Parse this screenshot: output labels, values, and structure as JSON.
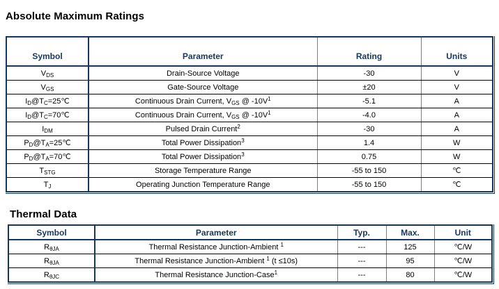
{
  "colors": {
    "accent_navy": "#17365D",
    "grid_gray": "#7f7f7f",
    "row_divider": "#000000",
    "body_text": "#000000",
    "background": "#ffffff"
  },
  "amr": {
    "title": "Absolute Maximum Ratings",
    "headers": [
      "Symbol",
      "Parameter",
      "Rating",
      "Units"
    ],
    "rows": [
      {
        "symbol": [
          {
            "t": "V"
          },
          {
            "t": "DS",
            "s": "sub"
          }
        ],
        "parameter": [
          {
            "t": "Drain-Source Voltage"
          }
        ],
        "rating": "-30",
        "units": "V"
      },
      {
        "symbol": [
          {
            "t": "V"
          },
          {
            "t": "GS",
            "s": "sub"
          }
        ],
        "parameter": [
          {
            "t": "Gate-Source Voltage"
          }
        ],
        "rating": "±20",
        "units": "V"
      },
      {
        "symbol": [
          {
            "t": "I"
          },
          {
            "t": "D",
            "s": "sub"
          },
          {
            "t": "@T"
          },
          {
            "t": "C",
            "s": "sub"
          },
          {
            "t": "=25℃"
          }
        ],
        "parameter": [
          {
            "t": "Continuous Drain Current, V"
          },
          {
            "t": "GS",
            "s": "sub"
          },
          {
            "t": " @ -10V"
          },
          {
            "t": "1",
            "s": "sup"
          }
        ],
        "rating": "-5.1",
        "units": "A"
      },
      {
        "symbol": [
          {
            "t": "I"
          },
          {
            "t": "D",
            "s": "sub"
          },
          {
            "t": "@T"
          },
          {
            "t": "C",
            "s": "sub"
          },
          {
            "t": "=70℃"
          }
        ],
        "parameter": [
          {
            "t": "Continuous Drain Current, V"
          },
          {
            "t": "GS",
            "s": "sub"
          },
          {
            "t": " @ -10V"
          },
          {
            "t": "1",
            "s": "sup"
          }
        ],
        "rating": "-4.0",
        "units": "A"
      },
      {
        "symbol": [
          {
            "t": "I"
          },
          {
            "t": "DM",
            "s": "sub"
          }
        ],
        "parameter": [
          {
            "t": "Pulsed Drain Current"
          },
          {
            "t": "2",
            "s": "sup"
          }
        ],
        "rating": "-30",
        "units": "A"
      },
      {
        "symbol": [
          {
            "t": "P"
          },
          {
            "t": "D",
            "s": "sub"
          },
          {
            "t": "@T"
          },
          {
            "t": "A",
            "s": "sub"
          },
          {
            "t": "=25℃"
          }
        ],
        "parameter": [
          {
            "t": "Total Power Dissipation"
          },
          {
            "t": "3",
            "s": "sup"
          }
        ],
        "rating": "1.4",
        "units": "W"
      },
      {
        "symbol": [
          {
            "t": "P"
          },
          {
            "t": "D",
            "s": "sub"
          },
          {
            "t": "@T"
          },
          {
            "t": "A",
            "s": "sub"
          },
          {
            "t": "=70℃"
          }
        ],
        "parameter": [
          {
            "t": "Total Power Dissipation"
          },
          {
            "t": "3",
            "s": "sup"
          }
        ],
        "rating": "0.75",
        "units": "W"
      },
      {
        "symbol": [
          {
            "t": "T"
          },
          {
            "t": "STG",
            "s": "sub"
          }
        ],
        "parameter": [
          {
            "t": "Storage Temperature Range"
          }
        ],
        "rating": "-55 to 150",
        "units": "℃"
      },
      {
        "symbol": [
          {
            "t": "T"
          },
          {
            "t": "J",
            "s": "sub"
          }
        ],
        "parameter": [
          {
            "t": "Operating Junction Temperature Range"
          }
        ],
        "rating": "-55 to 150",
        "units": "℃"
      }
    ]
  },
  "thermal": {
    "title": "Thermal Data",
    "headers": [
      "Symbol",
      "Parameter",
      "Typ.",
      "Max.",
      "Unit"
    ],
    "rows": [
      {
        "symbol": [
          {
            "t": "R"
          },
          {
            "t": "θJA",
            "s": "sub"
          }
        ],
        "parameter": [
          {
            "t": "Thermal Resistance Junction-Ambient "
          },
          {
            "t": "1",
            "s": "sup"
          }
        ],
        "typ": "---",
        "max": "125",
        "unit": "℃/W"
      },
      {
        "symbol": [
          {
            "t": "R"
          },
          {
            "t": "θJA",
            "s": "sub"
          }
        ],
        "parameter": [
          {
            "t": "Thermal Resistance Junction-Ambient "
          },
          {
            "t": "1",
            "s": "sup"
          },
          {
            "t": " (t ≤10s)"
          }
        ],
        "typ": "---",
        "max": "95",
        "unit": "℃/W"
      },
      {
        "symbol": [
          {
            "t": "R"
          },
          {
            "t": "θJC",
            "s": "sub"
          }
        ],
        "parameter": [
          {
            "t": "Thermal Resistance Junction-Case"
          },
          {
            "t": "1",
            "s": "sup"
          }
        ],
        "typ": "---",
        "max": "80",
        "unit": "℃/W"
      }
    ]
  }
}
